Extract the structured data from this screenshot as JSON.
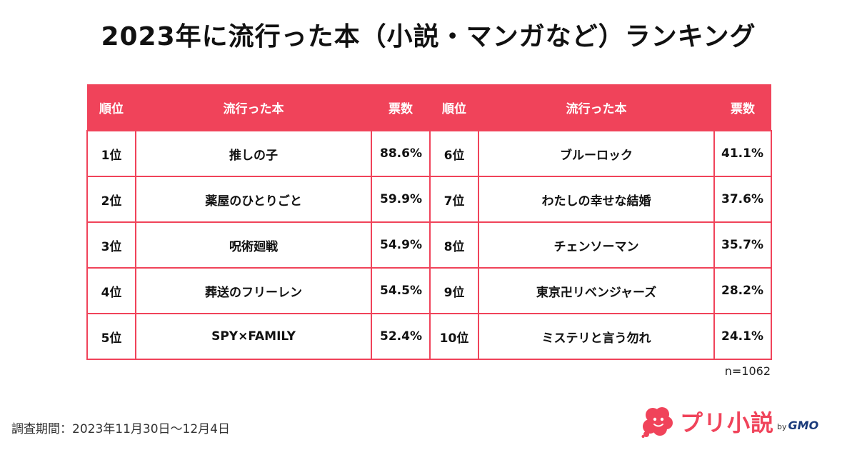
{
  "title": "2023年に流行った本（小説・マンガなど）ランキング",
  "colors": {
    "accent": "#f0435a",
    "brand_dark": "#1a3a7a"
  },
  "chart_data": {
    "type": "table",
    "title": "2023年に流行った本（小説・マンガなど）ランキング",
    "headers": [
      "順位",
      "流行った本",
      "票数",
      "順位",
      "流行った本",
      "票数"
    ],
    "rows": [
      {
        "rank": "1位",
        "book": "推しの子",
        "votes": "88.6%",
        "value": 88.6
      },
      {
        "rank": "2位",
        "book": "薬屋のひとりごと",
        "votes": "59.9%",
        "value": 59.9
      },
      {
        "rank": "3位",
        "book": "呪術廻戦",
        "votes": "54.9%",
        "value": 54.9
      },
      {
        "rank": "4位",
        "book": "葬送のフリーレン",
        "votes": "54.5%",
        "value": 54.5
      },
      {
        "rank": "5位",
        "book": "SPY×FAMILY",
        "votes": "52.4%",
        "value": 52.4
      },
      {
        "rank": "6位",
        "book": "ブルーロック",
        "votes": "41.1%",
        "value": 41.1
      },
      {
        "rank": "7位",
        "book": "わたしの幸せな結婚",
        "votes": "37.6%",
        "value": 37.6
      },
      {
        "rank": "8位",
        "book": "チェンソーマン",
        "votes": "35.7%",
        "value": 35.7
      },
      {
        "rank": "9位",
        "book": "東京卍リベンジャーズ",
        "votes": "28.2%",
        "value": 28.2
      },
      {
        "rank": "10位",
        "book": "ミステリと言う勿れ",
        "votes": "24.1%",
        "value": 24.1
      }
    ]
  },
  "sample_note": "n=1062",
  "survey_period": "調査期間：2023年11月30日〜12月4日",
  "logo": {
    "brand": "プリ小説",
    "by": "by",
    "company": "GMO",
    "icon": "cloud-logo-icon"
  }
}
